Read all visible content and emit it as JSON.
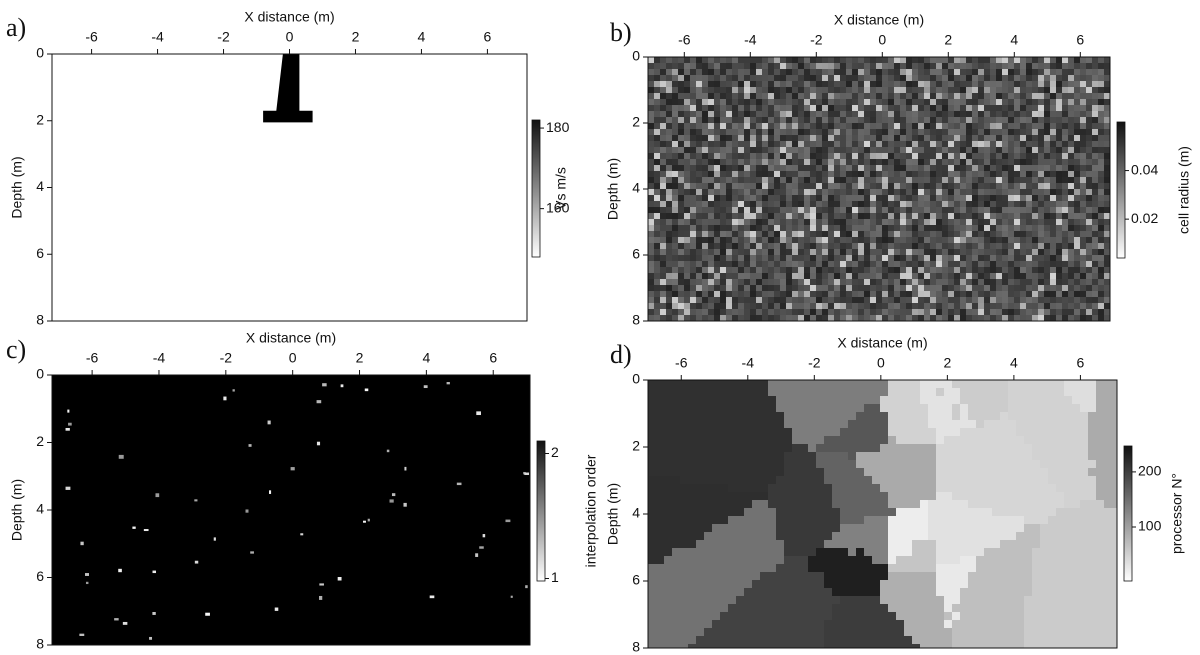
{
  "chart_data": [
    {
      "type": "heatmap",
      "panel_label": "a)",
      "xlabel": "X distance (m)",
      "ylabel": "Depth (m)",
      "xlim": [
        -7.2,
        7.2
      ],
      "xticks": [
        -6,
        -4,
        -2,
        0,
        2,
        4,
        6
      ],
      "ylim": [
        0,
        8
      ],
      "yticks": [
        0,
        2,
        4,
        6,
        8
      ],
      "colorbar_label": "Vs m/s",
      "clim": [
        148,
        182
      ],
      "cticks": [
        160,
        180
      ]
    },
    {
      "type": "heatmap",
      "panel_label": "b)",
      "xlabel": "X distance (m)",
      "ylabel": "Depth (m)",
      "xlim": [
        -7.1,
        6.9
      ],
      "xticks": [
        -6,
        -4,
        -2,
        0,
        2,
        4,
        6
      ],
      "ylim": [
        0,
        8
      ],
      "yticks": [
        0,
        2,
        4,
        6,
        8
      ],
      "colorbar_label": "cell radius (m)",
      "clim": [
        0.004,
        0.06
      ],
      "cticks": [
        0.02,
        0.04
      ]
    },
    {
      "type": "heatmap",
      "panel_label": "c)",
      "xlabel": "X distance (m)",
      "ylabel": "Depth (m)",
      "xlim": [
        -7.2,
        7.1
      ],
      "xticks": [
        -6,
        -4,
        -2,
        0,
        2,
        4,
        6
      ],
      "ylim": [
        0,
        8
      ],
      "yticks": [
        0,
        2,
        4,
        6,
        8
      ],
      "colorbar_label": "interpolation order",
      "clim": [
        0.98,
        2.1
      ],
      "cticks": [
        1,
        2
      ]
    },
    {
      "type": "heatmap",
      "panel_label": "d)",
      "xlabel": "X distance (m)",
      "ylabel": "Depth (m)",
      "xlim": [
        -7.0,
        7.1
      ],
      "xticks": [
        -6,
        -4,
        -2,
        0,
        2,
        4,
        6
      ],
      "ylim": [
        0,
        8
      ],
      "yticks": [
        0,
        2,
        4,
        6,
        8
      ],
      "colorbar_label": "processor N°",
      "clim": [
        2,
        247
      ],
      "cticks": [
        100,
        200
      ]
    }
  ]
}
